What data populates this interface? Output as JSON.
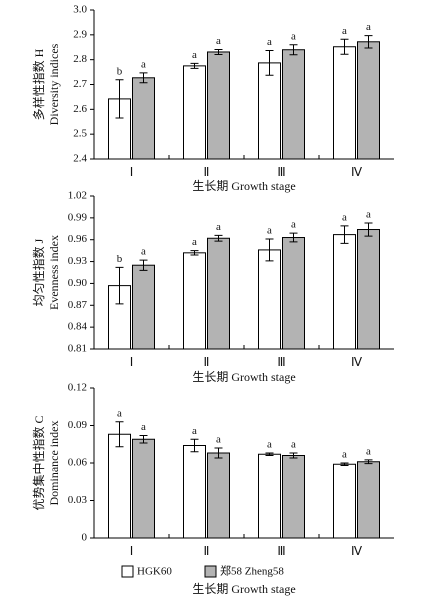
{
  "chart_data": [
    {
      "type": "bar",
      "ylabel": [
        "多样性指数 H",
        "Diversity indices"
      ],
      "xlabel": "生长期 Growth stage",
      "categories": [
        "Ⅰ",
        "Ⅱ",
        "Ⅲ",
        "Ⅳ"
      ],
      "ylim": [
        2.4,
        3.0
      ],
      "yticks": [
        2.4,
        2.5,
        2.6,
        2.7,
        2.8,
        2.9,
        {
          "value": 3.0,
          "label": "3.0"
        }
      ],
      "series": [
        {
          "color": "#ffffff",
          "values": [
            2.642,
            2.775,
            2.787,
            2.852
          ],
          "errors": [
            0.077,
            0.01,
            0.05,
            0.03
          ],
          "labels": [
            "b",
            "a",
            "a",
            "a"
          ]
        },
        {
          "color": "#b3b3b3",
          "values": [
            2.727,
            2.831,
            2.84,
            2.872
          ],
          "errors": [
            0.02,
            0.01,
            0.02,
            0.025
          ],
          "labels": [
            "a",
            "a",
            "a",
            "a"
          ]
        }
      ]
    },
    {
      "type": "bar",
      "ylabel": [
        "均匀性指数 J",
        "Evenness index"
      ],
      "xlabel": "生长期 Growth stage",
      "categories": [
        "Ⅰ",
        "Ⅱ",
        "Ⅲ",
        "Ⅳ"
      ],
      "ylim": [
        0.81,
        1.02
      ],
      "yticks": [
        0.81,
        0.84,
        0.87,
        {
          "value": 0.9,
          "label": "0.90"
        },
        0.93,
        0.96,
        0.99,
        1.02
      ],
      "series": [
        {
          "color": "#ffffff",
          "values": [
            0.897,
            0.942,
            0.946,
            0.967
          ],
          "errors": [
            0.025,
            0.003,
            0.015,
            0.012
          ],
          "labels": [
            "b",
            "a",
            "a",
            "a"
          ]
        },
        {
          "color": "#b3b3b3",
          "values": [
            0.925,
            0.962,
            0.963,
            0.974
          ],
          "errors": [
            0.007,
            0.004,
            0.006,
            0.009
          ],
          "labels": [
            "a",
            "a",
            "a",
            "a"
          ]
        }
      ]
    },
    {
      "type": "bar",
      "ylabel": [
        "优势集中性指数 C",
        "Dominance index"
      ],
      "xlabel": "生长期 Growth stage",
      "categories": [
        "Ⅰ",
        "Ⅱ",
        "Ⅲ",
        "Ⅳ"
      ],
      "ylim": [
        0,
        0.12
      ],
      "yticks": [
        0,
        0.03,
        0.06,
        0.09,
        0.12
      ],
      "series": [
        {
          "name": "HGK60",
          "color": "#ffffff",
          "values": [
            0.083,
            0.074,
            0.067,
            0.059
          ],
          "errors": [
            0.01,
            0.005,
            0.001,
            0.001
          ],
          "labels": [
            "a",
            "a",
            "a",
            "a"
          ]
        },
        {
          "name": "郑58 Zheng58",
          "color": "#b3b3b3",
          "values": [
            0.079,
            0.068,
            0.066,
            0.061
          ],
          "errors": [
            0.003,
            0.004,
            0.002,
            0.0015
          ],
          "labels": [
            "a",
            "a",
            "a",
            "a"
          ]
        }
      ]
    }
  ]
}
